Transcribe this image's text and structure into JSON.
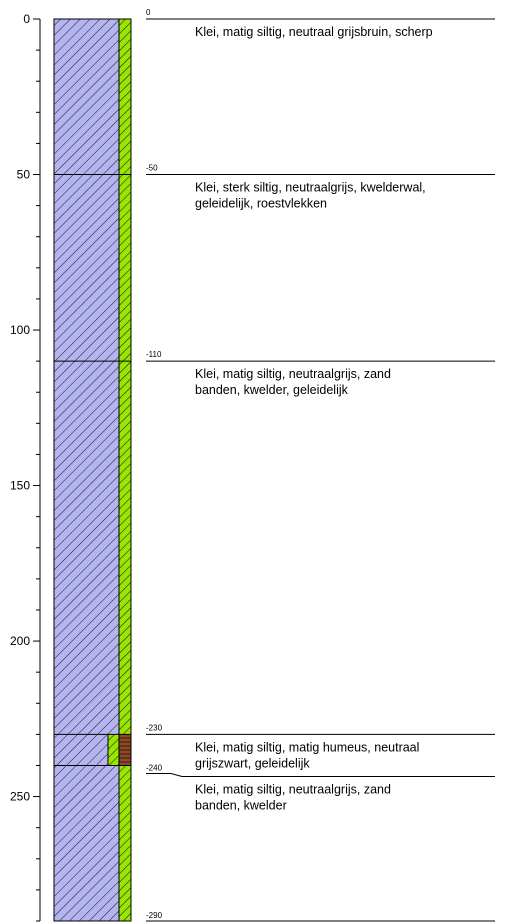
{
  "chart_data": {
    "type": "borehole-log",
    "depth_axis": {
      "range": [
        0,
        290
      ],
      "tick_values": [
        0,
        50,
        100,
        150,
        200,
        250
      ],
      "tick_labels": [
        "0",
        "50",
        "100",
        "150",
        "200",
        "250"
      ]
    },
    "layers": [
      {
        "top": 0,
        "bottom": 50,
        "top_label": "0",
        "lines": [
          "Klei, matig siltig, neutraal grijsbruin, scherp"
        ]
      },
      {
        "top": 50,
        "bottom": 110,
        "top_label": "-50",
        "lines": [
          "Klei, sterk siltig, neutraalgrijs, kwelderwal,",
          "geleidelijk, roestvlekken"
        ]
      },
      {
        "top": 110,
        "bottom": 230,
        "top_label": "-110",
        "lines": [
          "Klei, matig siltig, neutraalgrijs, zand",
          "banden, kwelder, geleidelijk"
        ]
      },
      {
        "top": 230,
        "bottom": 240,
        "top_label": "-230",
        "lines": [
          "Klei, matig siltig, matig humeus, neutraal",
          "grijszwart, geleidelijk"
        ]
      },
      {
        "top": 240,
        "bottom": 290,
        "top_label": "-240",
        "lines": [
          "Klei, matig siltig, neutraalgrijs, zand",
          "banden, kwelder"
        ]
      }
    ],
    "bottom_label": "-290",
    "colors": {
      "clay": "#b4b4f0",
      "silt": "#99e600",
      "humus": "#8c4a28",
      "line": "#000000"
    }
  }
}
